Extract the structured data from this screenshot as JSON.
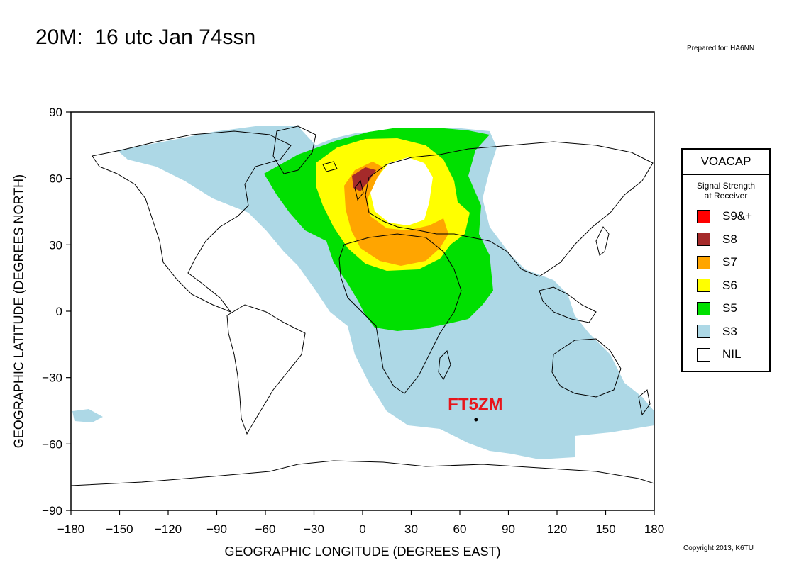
{
  "header": {
    "title": "20M:  16 utc Jan 74ssn",
    "prepared_for": "Prepared for: HA6NN",
    "copyright": "Copyright 2013, K6TU"
  },
  "axes": {
    "xlabel": "GEOGRAPHIC LONGITUDE (DEGREES EAST)",
    "ylabel": "GEOGRAPHIC LATITUDE (DEGREES NORTH)",
    "xlim": [
      -180,
      180
    ],
    "ylim": [
      -90,
      90
    ],
    "xticks": [
      -180,
      -150,
      -120,
      -90,
      -60,
      -30,
      0,
      30,
      60,
      90,
      120,
      150,
      180
    ],
    "yticks": [
      90,
      60,
      30,
      0,
      -30,
      -60,
      -90
    ],
    "xtick_labels": [
      "−180",
      "−150",
      "−120",
      "−90",
      "−60",
      "−30",
      "0",
      "30",
      "60",
      "90",
      "120",
      "150",
      "180"
    ],
    "ytick_labels": [
      "90",
      "60",
      "30",
      "0",
      "−30",
      "−60",
      "−90"
    ]
  },
  "map": {
    "station_label": "FT5ZM",
    "station_label_color": "#e8151b",
    "station_lon": 70,
    "station_lat": -49
  },
  "legend": {
    "title": "VOACAP",
    "subtitle_line1": "Signal Strength",
    "subtitle_line2": "at Receiver",
    "items": [
      {
        "label": "S9&+",
        "color": "#ff0000"
      },
      {
        "label": "S8",
        "color": "#a52a2a"
      },
      {
        "label": "S7",
        "color": "#ffa500"
      },
      {
        "label": "S6",
        "color": "#ffff00"
      },
      {
        "label": "S5",
        "color": "#00e000"
      },
      {
        "label": "S3",
        "color": "#add8e6"
      },
      {
        "label": "NIL",
        "color": "#ffffff"
      }
    ]
  }
}
